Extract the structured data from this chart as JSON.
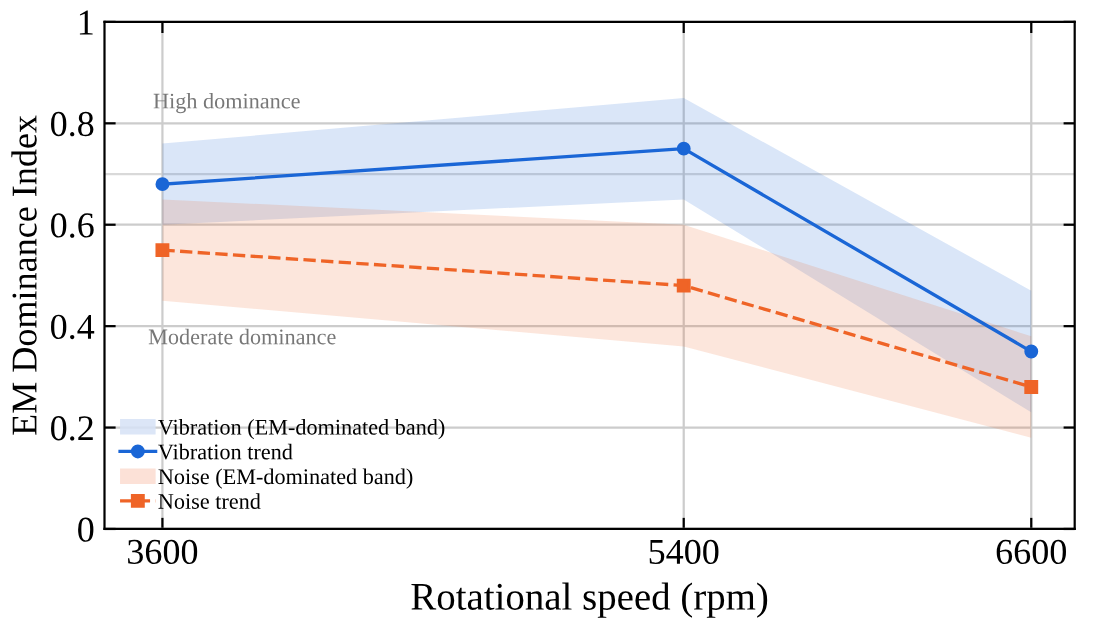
{
  "chart_data": {
    "type": "line",
    "xlabel": "Rotational speed (rpm)",
    "ylabel": "EM Dominance Index",
    "x": [
      3600,
      5400,
      6600
    ],
    "xlim": [
      3400,
      6750
    ],
    "xticks": [
      3600,
      5400,
      6600
    ],
    "ylim": [
      0,
      1
    ],
    "yticks": [
      0,
      0.2,
      0.4,
      0.6,
      0.8,
      1
    ],
    "series": [
      {
        "name": "Vibration (EM-dominated band)",
        "type": "area",
        "color": "#d6e2f6",
        "values": [
          null,
          null,
          null
        ]
      },
      {
        "name": "Vibration trend",
        "color": "#1a66d6",
        "values": [
          0.68,
          0.75,
          0.35
        ],
        "lower": [
          0.6,
          0.65,
          0.23
        ],
        "upper": [
          0.76,
          0.85,
          0.47
        ],
        "marker": "circle",
        "line_style": "solid"
      },
      {
        "name": "Noise (EM-dominated band)",
        "type": "area",
        "color": "#fcdcd0",
        "values": [
          null,
          null,
          null
        ]
      },
      {
        "name": "Noise trend",
        "color": "#ef6427",
        "values": [
          0.55,
          0.48,
          0.28
        ],
        "lower": [
          0.45,
          0.36,
          0.18
        ],
        "upper": [
          0.65,
          0.6,
          0.38
        ],
        "marker": "square",
        "line_style": "dashed"
      }
    ],
    "ref_lines": [
      {
        "axis": "y",
        "value": 0.7,
        "color": "#d9d9d9"
      }
    ],
    "annotations": [
      "High dominance",
      "Moderate dominance"
    ],
    "grid": true,
    "legend": "bottom left"
  }
}
